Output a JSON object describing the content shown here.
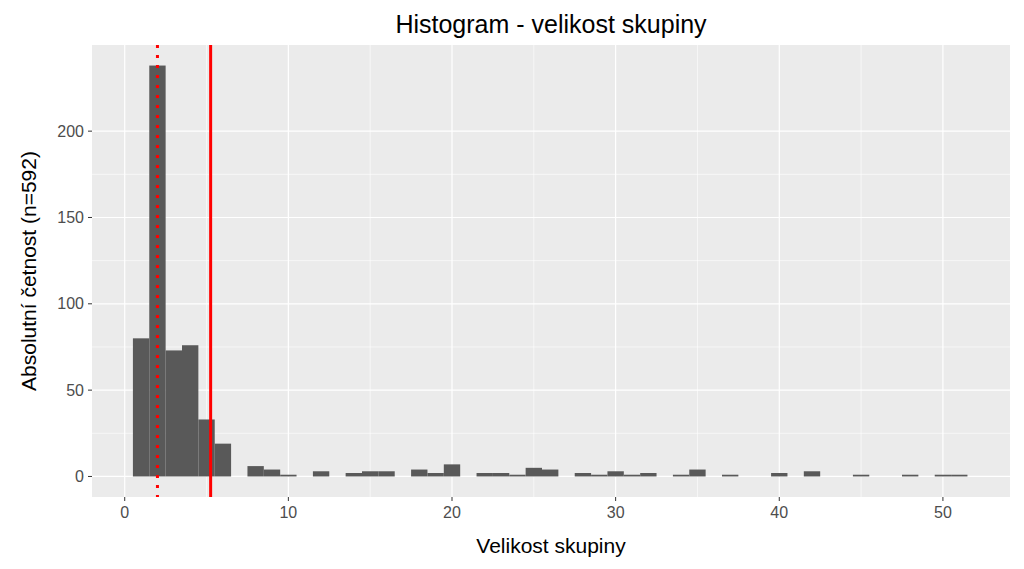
{
  "chart_data": {
    "type": "histogram",
    "title": "Histogram - velikost skupiny",
    "x_label": "Velikost skupiny",
    "y_label": "Absolutní četnost (n=592)",
    "bins": [
      0.5,
      1.5,
      2.5,
      3.5,
      4.5,
      5.5,
      6.5,
      7.5,
      8.5,
      9.5,
      10.5,
      11.5,
      12.5,
      13.5,
      14.5,
      15.5,
      16.5,
      17.5,
      18.5,
      19.5,
      20.5,
      21.5,
      22.5,
      23.5,
      24.5,
      25.5,
      26.5,
      27.5,
      28.5,
      29.5,
      30.5,
      31.5,
      32.5,
      33.5,
      34.5,
      35.5,
      36.5,
      37.5,
      38.5,
      39.5,
      40.5,
      41.5,
      42.5,
      43.5,
      44.5,
      45.5,
      46.5,
      47.5,
      48.5,
      49.5,
      50.5,
      51.5
    ],
    "values": [
      80,
      238,
      73,
      76,
      33,
      19,
      0,
      6,
      4,
      1,
      0,
      3,
      0,
      2,
      3,
      3,
      0,
      4,
      2,
      7,
      0,
      2,
      2,
      1,
      5,
      4,
      0,
      2,
      1,
      3,
      1,
      2,
      0,
      1,
      4,
      0,
      1,
      0,
      0,
      2,
      0,
      3,
      0,
      0,
      1,
      0,
      0,
      1,
      0,
      1,
      1
    ],
    "color": "#595959",
    "vlines": [
      {
        "value": 2,
        "line_style": "dotted",
        "color": "#ff0000"
      },
      {
        "value": 5.25,
        "line_style": "solid",
        "color": "#ff0000"
      }
    ],
    "xlim": [
      -2,
      54.1
    ],
    "ylim": [
      -11.9,
      249.9
    ],
    "xticks": [
      0,
      10,
      20,
      30,
      40,
      50
    ],
    "yticks": [
      0,
      50,
      100,
      150,
      200
    ],
    "grid": true
  }
}
